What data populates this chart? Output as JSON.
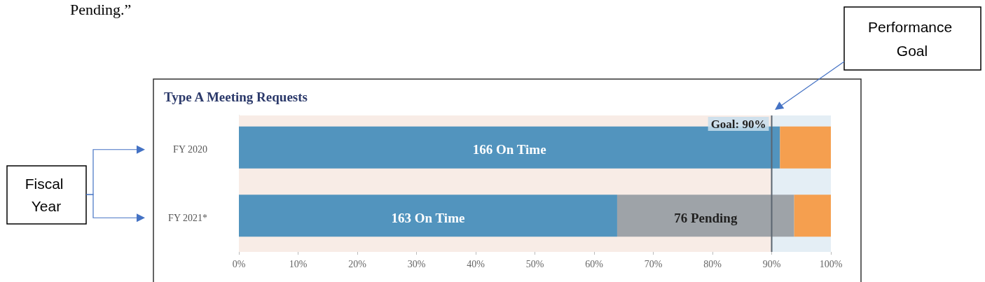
{
  "chart_data": {
    "type": "bar",
    "orientation": "horizontal",
    "stacked": true,
    "title": "Type A Meeting Requests",
    "categories": [
      "FY 2020",
      "FY 2021*"
    ],
    "series": [
      {
        "color": "#5294be",
        "values": [
          91.4,
          63.9
        ]
      },
      {
        "color": "#9ea3a8",
        "values": [
          0,
          29.9
        ]
      },
      {
        "color": "#f59f4f",
        "values": [
          8.6,
          6.2
        ]
      }
    ],
    "xlim": [
      0,
      100
    ],
    "xticks": [
      {
        "value": 0,
        "label": "0%"
      },
      {
        "value": 10,
        "label": "10%"
      },
      {
        "value": 20,
        "label": "20%"
      },
      {
        "value": 30,
        "label": "30%"
      },
      {
        "value": 40,
        "label": "40%"
      },
      {
        "value": 50,
        "label": "50%"
      },
      {
        "value": 60,
        "label": "60%"
      },
      {
        "value": 70,
        "label": "70%"
      },
      {
        "value": 80,
        "label": "80%"
      },
      {
        "value": 90,
        "label": "90%"
      },
      {
        "value": 100,
        "label": "100%"
      }
    ],
    "bands": [
      {
        "axis": "x",
        "from": 0,
        "to": 90,
        "color": "#f8ece6"
      },
      {
        "axis": "x",
        "from": 90,
        "to": 100,
        "color": "#e4eef5"
      }
    ],
    "ref_lines": [
      {
        "axis": "x",
        "value": 90,
        "label": "Goal: 90%",
        "color": "#5a6570"
      }
    ],
    "grid": false,
    "annotations": [
      "Pending.”",
      "Performance Goal",
      "Fiscal Year",
      "166 On Time",
      "163 On Time",
      "76 Pending"
    ]
  }
}
